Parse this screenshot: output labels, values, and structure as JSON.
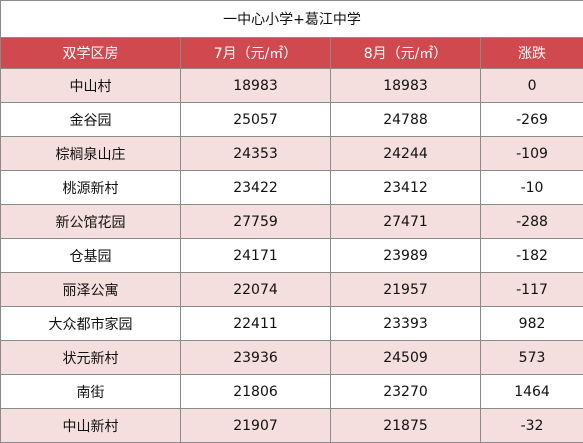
{
  "title": "一中心小学+葛江中学",
  "colors": {
    "header_bg": "#d0494f",
    "header_text": "#ffffff",
    "shaded_row": "#f4dede",
    "plain_row": "#ffffff",
    "border": "#8a8a8a"
  },
  "headers": [
    "双学区房",
    "7月（元/㎡）",
    "8月（元/㎡）",
    "涨跌"
  ],
  "rows": [
    {
      "name": "中山村",
      "jul": "18983",
      "aug": "18983",
      "change": "0"
    },
    {
      "name": "金谷园",
      "jul": "25057",
      "aug": "24788",
      "change": "-269"
    },
    {
      "name": "棕榈泉山庄",
      "jul": "24353",
      "aug": "24244",
      "change": "-109"
    },
    {
      "name": "桃源新村",
      "jul": "23422",
      "aug": "23412",
      "change": "-10"
    },
    {
      "name": "新公馆花园",
      "jul": "27759",
      "aug": "27471",
      "change": "-288"
    },
    {
      "name": "仓基园",
      "jul": "24171",
      "aug": "23989",
      "change": "-182"
    },
    {
      "name": "丽泽公寓",
      "jul": "22074",
      "aug": "21957",
      "change": "-117"
    },
    {
      "name": "大众都市家园",
      "jul": "22411",
      "aug": "23393",
      "change": "982"
    },
    {
      "name": "状元新村",
      "jul": "23936",
      "aug": "24509",
      "change": "573"
    },
    {
      "name": "南街",
      "jul": "21806",
      "aug": "23270",
      "change": "1464"
    },
    {
      "name": "中山新村",
      "jul": "21907",
      "aug": "21875",
      "change": "-32"
    }
  ]
}
